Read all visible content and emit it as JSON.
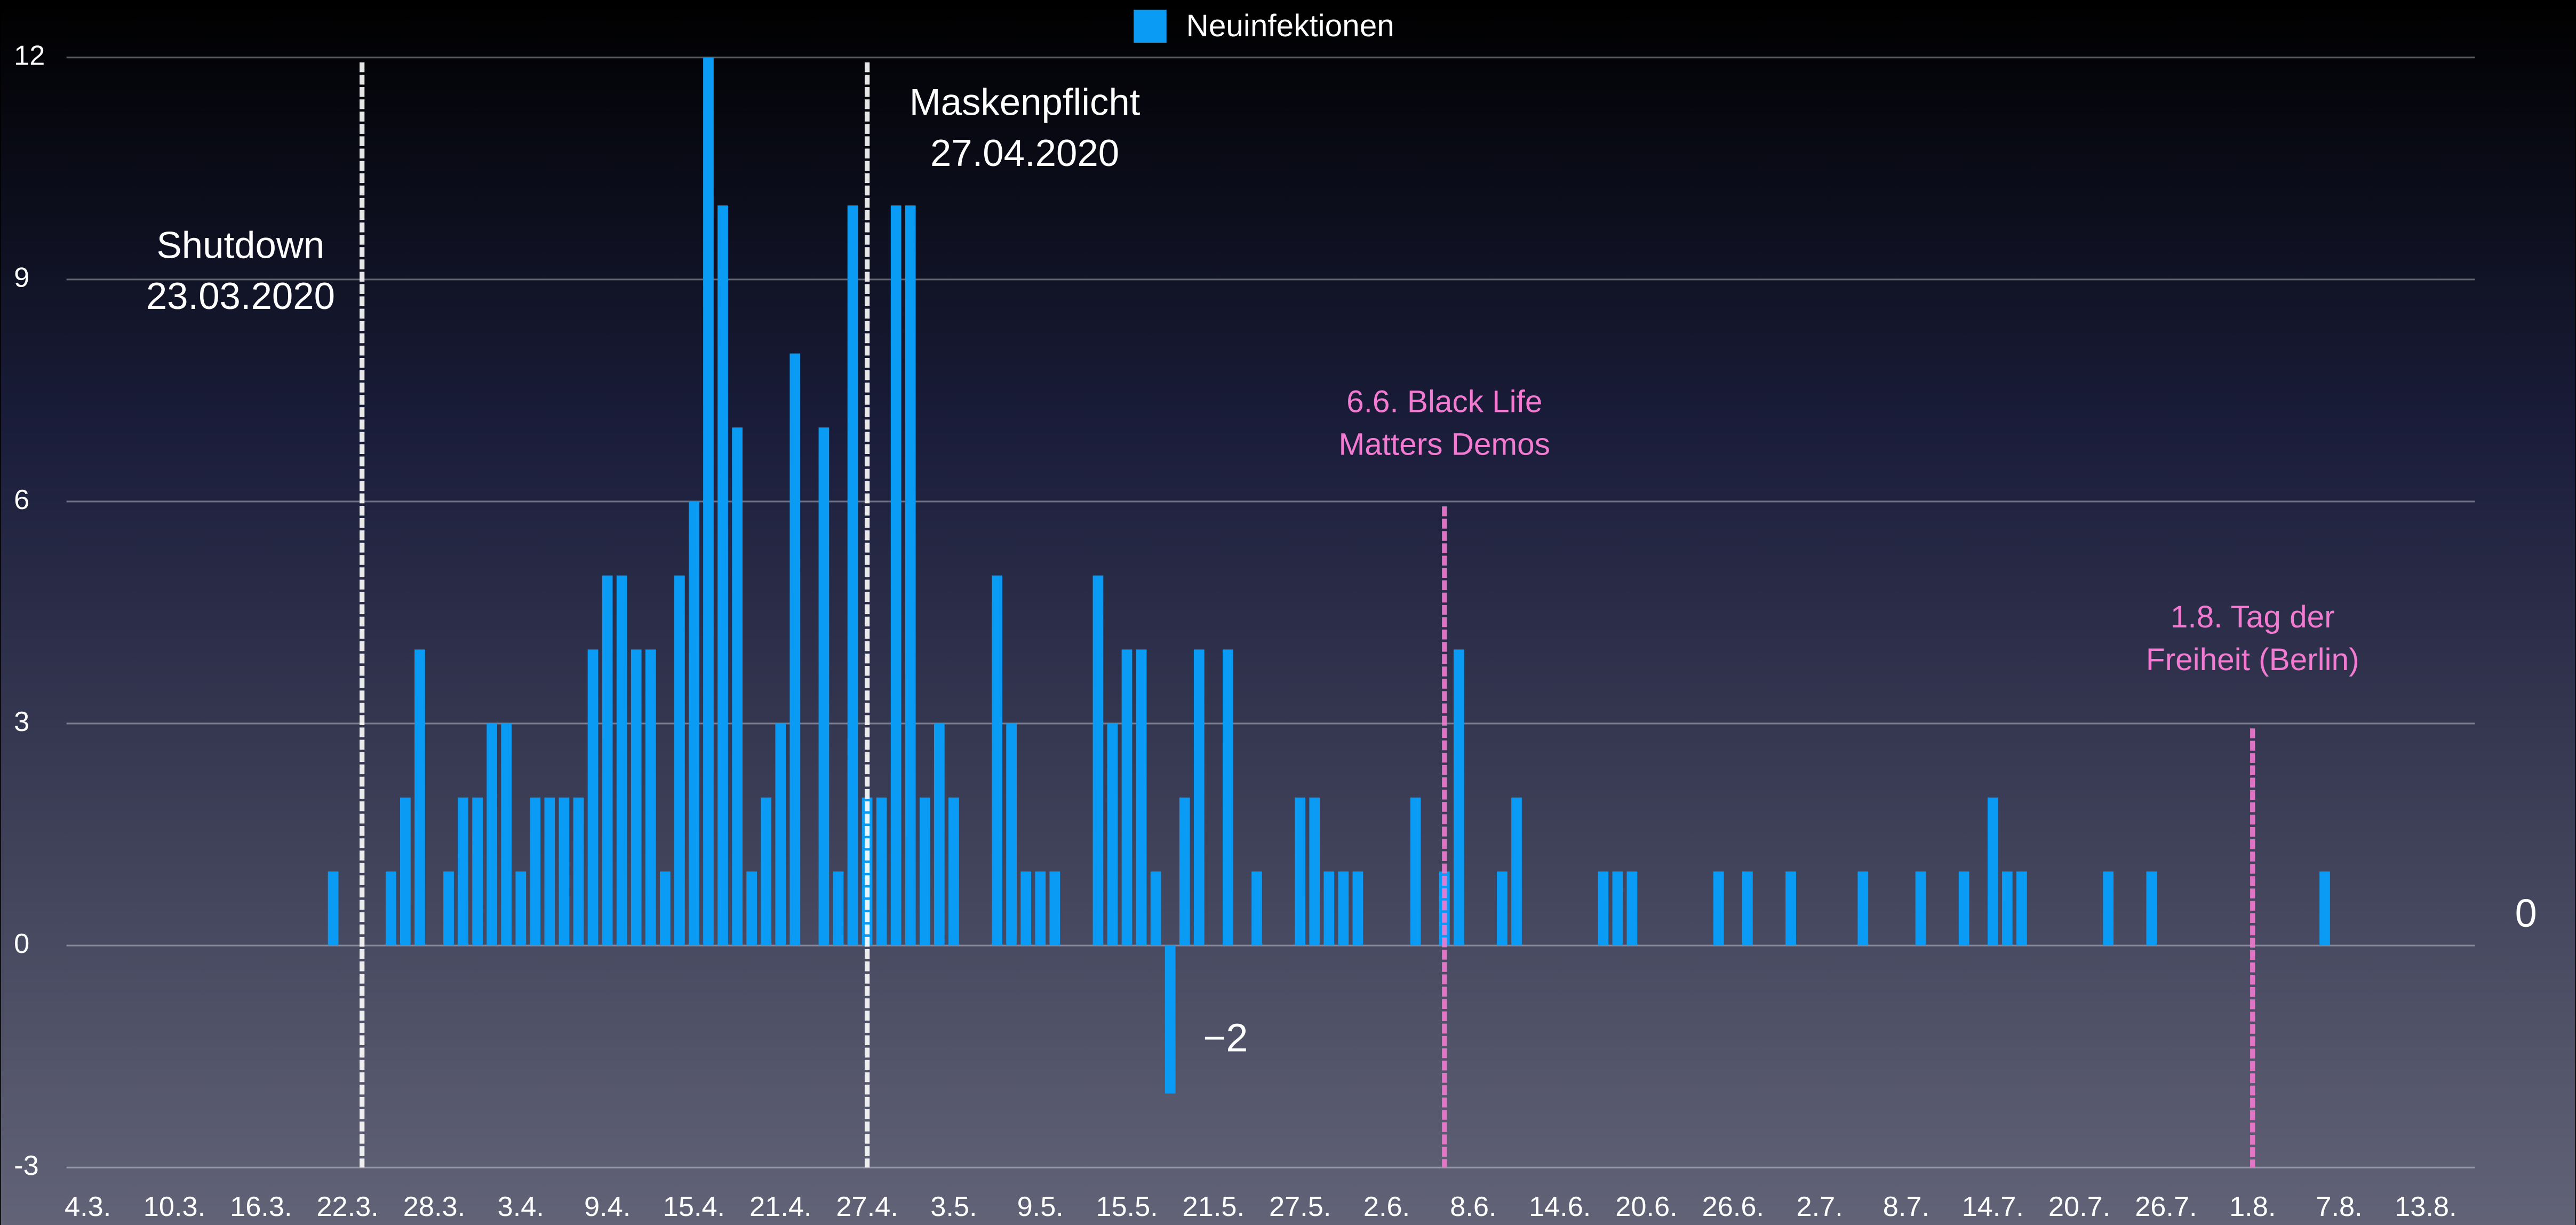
{
  "chart_data": {
    "type": "bar",
    "legend": "top",
    "grid": true,
    "series": [
      {
        "name": "Neuinfektionen",
        "color": "#0a9cf5",
        "values": [
          0,
          0,
          0,
          0,
          0,
          0,
          0,
          0,
          0,
          0,
          0,
          0,
          0,
          0,
          0,
          0,
          0,
          1,
          0,
          0,
          0,
          1,
          2,
          4,
          0,
          1,
          2,
          2,
          3,
          3,
          1,
          2,
          2,
          2,
          2,
          4,
          5,
          5,
          4,
          4,
          1,
          5,
          6,
          12,
          10,
          7,
          1,
          2,
          3,
          8,
          0,
          7,
          1,
          10,
          2,
          2,
          10,
          10,
          2,
          3,
          2,
          0,
          0,
          5,
          3,
          1,
          1,
          1,
          0,
          0,
          5,
          3,
          4,
          4,
          1,
          -2,
          2,
          4,
          0,
          4,
          0,
          1,
          0,
          0,
          2,
          2,
          1,
          1,
          1,
          0,
          0,
          0,
          2,
          0,
          1,
          4,
          0,
          0,
          1,
          2,
          0,
          0,
          0,
          0,
          0,
          1,
          1,
          1,
          0,
          0,
          0,
          0,
          0,
          1,
          0,
          1,
          0,
          0,
          1,
          0,
          0,
          0,
          0,
          1,
          0,
          0,
          0,
          1,
          0,
          0,
          1,
          0,
          2,
          1,
          1,
          0,
          0,
          0,
          0,
          0,
          1,
          0,
          0,
          1,
          0,
          0,
          0,
          0,
          0,
          0,
          0,
          0,
          0,
          0,
          0,
          1,
          0,
          0,
          0,
          0,
          0,
          0,
          0
        ],
        "value_labels": [
          null,
          null,
          null,
          null,
          null,
          null,
          null,
          null,
          null,
          null,
          null,
          null,
          null,
          null,
          null,
          null,
          null,
          null,
          null,
          null,
          null,
          null,
          null,
          null,
          null,
          null,
          null,
          null,
          null,
          null,
          null,
          null,
          null,
          null,
          null,
          null,
          null,
          null,
          null,
          null,
          null,
          null,
          null,
          null,
          null,
          null,
          null,
          null,
          null,
          null,
          null,
          null,
          null,
          null,
          null,
          null,
          null,
          null,
          null,
          null,
          null,
          null,
          null,
          null,
          null,
          null,
          null,
          null,
          null,
          null,
          null,
          null,
          null,
          null,
          null,
          "−2",
          null,
          null,
          null,
          null,
          null,
          null,
          null,
          null,
          null,
          null,
          null,
          null,
          null,
          null,
          null,
          null,
          null,
          null,
          null,
          null,
          null,
          null,
          null,
          null,
          null,
          null,
          null,
          null,
          null,
          null,
          null,
          null,
          null,
          null,
          null,
          null,
          null,
          null,
          null,
          null,
          null,
          null,
          null,
          null,
          null,
          null,
          null,
          null,
          null,
          null,
          null,
          null,
          null,
          null,
          null,
          null,
          null,
          null,
          null,
          null,
          null,
          null,
          null,
          null,
          null,
          null,
          null,
          null,
          null,
          null,
          null,
          null,
          null,
          null,
          null,
          null,
          null,
          null,
          null,
          null,
          null,
          null,
          null,
          null,
          null,
          null,
          null
        ]
      }
    ],
    "categories": [
      "4.3.",
      null,
      null,
      null,
      null,
      null,
      "10.3.",
      null,
      null,
      null,
      null,
      null,
      "16.3.",
      null,
      null,
      null,
      null,
      null,
      "22.3.",
      null,
      null,
      null,
      null,
      null,
      "28.3.",
      null,
      null,
      null,
      null,
      null,
      "3.4.",
      null,
      null,
      null,
      null,
      null,
      "9.4.",
      null,
      null,
      null,
      null,
      null,
      "15.4.",
      null,
      null,
      null,
      null,
      null,
      "21.4.",
      null,
      null,
      null,
      null,
      null,
      "27.4.",
      null,
      null,
      null,
      null,
      null,
      "3.5.",
      null,
      null,
      null,
      null,
      null,
      "9.5.",
      null,
      null,
      null,
      null,
      null,
      "15.5.",
      null,
      null,
      null,
      null,
      null,
      "21.5.",
      null,
      null,
      null,
      null,
      null,
      "27.5.",
      null,
      null,
      null,
      null,
      null,
      "2.6.",
      null,
      null,
      null,
      null,
      null,
      "8.6.",
      null,
      null,
      null,
      null,
      null,
      "14.6.",
      null,
      null,
      null,
      null,
      null,
      "20.6.",
      null,
      null,
      null,
      null,
      null,
      "26.6.",
      null,
      null,
      null,
      null,
      null,
      "2.7.",
      null,
      null,
      null,
      null,
      null,
      "8.7.",
      null,
      null,
      null,
      null,
      null,
      "14.7.",
      null,
      null,
      null,
      null,
      null,
      "20.7.",
      null,
      null,
      null,
      null,
      null,
      "26.7.",
      null,
      null,
      null,
      null,
      null,
      "1.8.",
      null,
      null,
      null,
      null,
      null,
      "7.8.",
      null,
      null,
      null,
      null,
      null,
      "13.8."
    ],
    "ylim": [
      -3,
      12
    ],
    "yticks": [
      -3,
      0,
      3,
      6,
      9,
      12
    ],
    "annotations": [
      {
        "text": [
          "Shutdown",
          "23.03.2020"
        ],
        "x": 19,
        "y_top": 12,
        "color": "#ffffff"
      },
      {
        "text": [
          "Maskenpflicht",
          "27.04.2020"
        ],
        "x": 54,
        "y_top": 12,
        "color": "#ffffff"
      },
      {
        "text": [
          "6.6. Black Life",
          "Matters Demos"
        ],
        "x": 94,
        "y_top": 6,
        "color": "#f27ad0"
      },
      {
        "text": [
          "1.8. Tag der",
          "Freiheit (Berlin)"
        ],
        "x": 150,
        "y_top": 3,
        "color": "#f27ad0"
      }
    ],
    "side_label": "0"
  }
}
